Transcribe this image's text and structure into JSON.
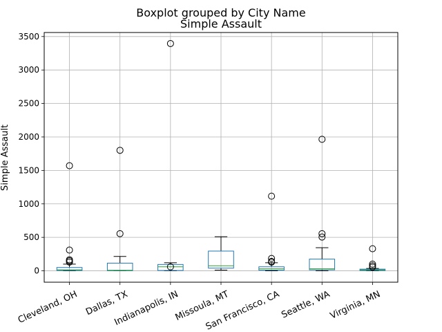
{
  "chart_data": {
    "type": "box",
    "suptitle": "Boxplot grouped by City Name",
    "title": "Simple Assault",
    "xlabel": "",
    "ylabel": "Simple Assault",
    "ylim": [
      -170,
      3560
    ],
    "yticks": [
      0,
      500,
      1000,
      1500,
      2000,
      2500,
      3000,
      3500
    ],
    "grid": true,
    "colors": {
      "box": "#1f77b4",
      "median": "#2ca02c",
      "whisker": "#000000",
      "grid": "#b0b0b0"
    },
    "categories": [
      "Cleveland, OH",
      "Dallas, TX",
      "Indianapolis, IN",
      "Missoula, MT",
      "San Francisco, CA",
      "Seattle, WA",
      "Virginia, MN"
    ],
    "boxes": [
      {
        "whislo": 0,
        "q1": 5,
        "med": 15,
        "q3": 50,
        "whishi": 100,
        "fliers": [
          130,
          150,
          165,
          310,
          1570
        ]
      },
      {
        "whislo": 0,
        "q1": 2,
        "med": 8,
        "q3": 115,
        "whishi": 215,
        "fliers": [
          555,
          1800
        ]
      },
      {
        "whislo": 0,
        "q1": 5,
        "med": 60,
        "q3": 95,
        "whishi": 120,
        "fliers": [
          60,
          3395
        ]
      },
      {
        "whislo": 10,
        "q1": 40,
        "med": 75,
        "q3": 295,
        "whishi": 510,
        "fliers": []
      },
      {
        "whislo": 0,
        "q1": 10,
        "med": 30,
        "q3": 60,
        "whishi": 120,
        "fliers": [
          130,
          140,
          185,
          1115
        ]
      },
      {
        "whislo": 0,
        "q1": 15,
        "med": 30,
        "q3": 175,
        "whishi": 345,
        "fliers": [
          505,
          555,
          1965
        ]
      },
      {
        "whislo": 0,
        "q1": 5,
        "med": 15,
        "q3": 25,
        "whishi": 35,
        "fliers": [
          55,
          75,
          100,
          330
        ]
      }
    ]
  }
}
